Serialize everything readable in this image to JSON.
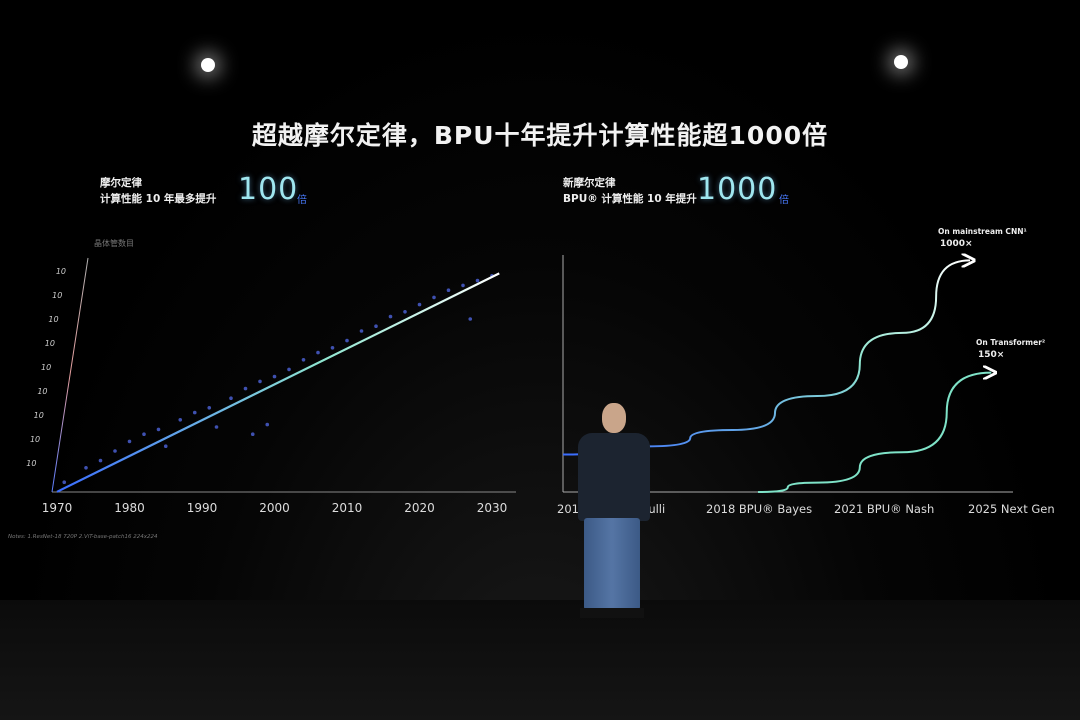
{
  "title": "超越摩尔定律，BPU十年提升计算性能超1000倍",
  "left_panel": {
    "heading": "摩尔定律",
    "subheading": "计算性能 10 年最多提升",
    "value": "100",
    "unit": "倍"
  },
  "right_panel": {
    "heading": "新摩尔定律",
    "subheading": "BPU® 计算性能 10 年提升",
    "value": "1000",
    "unit": "倍"
  },
  "chart_data": [
    {
      "type": "scatter",
      "ylabel": "晶体管数目",
      "y_scale": "log",
      "y_tick_labels": [
        "10",
        "10",
        "10",
        "10",
        "10",
        "10",
        "10",
        "10",
        "10"
      ],
      "x_tick_labels": [
        "1970",
        "1980",
        "1990",
        "2000",
        "2010",
        "2020",
        "2030"
      ],
      "xlim": [
        1970,
        2031
      ],
      "trend_line": [
        [
          1970,
          -0.2
        ],
        [
          2031,
          8.9
        ]
      ],
      "points": [
        [
          1971,
          0.2
        ],
        [
          1974,
          0.8
        ],
        [
          1976,
          1.1
        ],
        [
          1978,
          1.5
        ],
        [
          1980,
          1.9
        ],
        [
          1982,
          2.2
        ],
        [
          1984,
          2.4
        ],
        [
          1985,
          1.7
        ],
        [
          1987,
          2.8
        ],
        [
          1989,
          3.1
        ],
        [
          1991,
          3.3
        ],
        [
          1992,
          2.5
        ],
        [
          1994,
          3.7
        ],
        [
          1996,
          4.1
        ],
        [
          1997,
          2.2
        ],
        [
          1998,
          4.4
        ],
        [
          1999,
          2.6
        ],
        [
          2000,
          4.6
        ],
        [
          2002,
          4.9
        ],
        [
          2004,
          5.3
        ],
        [
          2006,
          5.6
        ],
        [
          2008,
          5.8
        ],
        [
          2010,
          6.1
        ],
        [
          2012,
          6.5
        ],
        [
          2014,
          6.7
        ],
        [
          2016,
          7.1
        ],
        [
          2018,
          7.3
        ],
        [
          2020,
          7.6
        ],
        [
          2022,
          7.9
        ],
        [
          2024,
          8.2
        ],
        [
          2026,
          8.4
        ],
        [
          2027,
          7.0
        ],
        [
          2028,
          8.6
        ],
        [
          2030,
          8.8
        ]
      ],
      "footnote": "Notes: 1.ResNet-18 720P 2.ViT-base-patch16 224x224",
      "colors": {
        "line_start": "#3a6cff",
        "line_end": "#ffffff",
        "points": "#4a5fd0"
      }
    },
    {
      "type": "line",
      "categories": [
        "2016 BPU® Bernoulli",
        "2018 BPU® Bayes",
        "2021 BPU® Nash",
        "2025 Next Gen"
      ],
      "x_tick_labels": [
        "2016 ",
        "noulli",
        "2018 BPU® Bayes",
        "2021 BPU® Nash",
        "2025 Next Gen"
      ],
      "xlim": [
        2016,
        2026.5
      ],
      "ylim": [
        0,
        1000
      ],
      "series": [
        {
          "name": "On mainstream CNN¹",
          "label": "1000×",
          "points": [
            [
              2016,
              160
            ],
            [
              2018,
              195
            ],
            [
              2020,
              265
            ],
            [
              2022,
              410
            ],
            [
              2024,
              680
            ],
            [
              2025.6,
              990
            ]
          ],
          "color": "#7fe3c8"
        },
        {
          "name": "On Transformer²",
          "label": "150×",
          "points": [
            [
              2020.6,
              0
            ],
            [
              2022,
              40
            ],
            [
              2024,
              170
            ],
            [
              2026.1,
              510
            ]
          ],
          "color": "#7fe3c8"
        }
      ]
    }
  ]
}
